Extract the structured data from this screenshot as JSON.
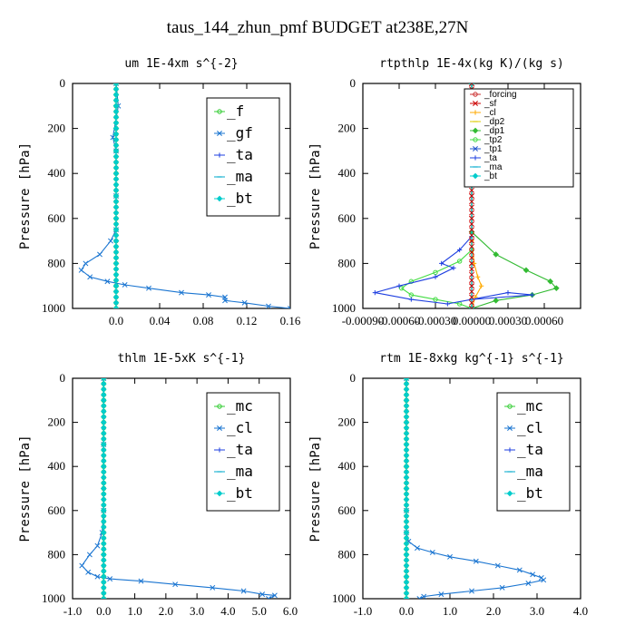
{
  "title": "taus_144_zhun_pmf  BUDGET at238E,27N",
  "chart_data": [
    {
      "type": "line",
      "title": "um   1E-4xm s^{-2}",
      "ylabel": "Pressure [hPa]",
      "xlim": [
        -0.04,
        0.16
      ],
      "xticks": [
        {
          "v": 0.0,
          "label": "0.0"
        },
        {
          "v": 0.04,
          "label": "0.04"
        },
        {
          "v": 0.08,
          "label": "0.08"
        },
        {
          "v": 0.12,
          "label": "0.12"
        },
        {
          "v": 0.16,
          "label": "0.16"
        }
      ],
      "ylim": [
        1000,
        0
      ],
      "yticks": [
        0,
        200,
        400,
        600,
        800,
        1000
      ],
      "legend": {
        "style": "big",
        "position": "top-right"
      },
      "series": [
        {
          "name": "_f",
          "color": "#33cc33",
          "marker": "o",
          "points": [
            [
              0,
              0
            ],
            [
              0,
              100
            ],
            [
              0,
              200
            ],
            [
              0,
              300
            ],
            [
              0,
              400
            ],
            [
              0,
              500
            ],
            [
              0,
              600
            ],
            [
              0,
              700
            ],
            [
              0,
              800
            ],
            [
              0,
              900
            ],
            [
              0,
              1000
            ]
          ]
        },
        {
          "name": "_gf",
          "color": "#1a75d1",
          "marker": "x",
          "points": [
            [
              0,
              0
            ],
            [
              0.002,
              100
            ],
            [
              -0.003,
              240
            ],
            [
              0,
              300
            ],
            [
              0,
              500
            ],
            [
              0,
              650
            ],
            [
              -0.005,
              700
            ],
            [
              -0.015,
              760
            ],
            [
              -0.028,
              800
            ],
            [
              -0.032,
              830
            ],
            [
              -0.024,
              860
            ],
            [
              -0.008,
              880
            ],
            [
              0.008,
              895
            ],
            [
              0.03,
              910
            ],
            [
              0.06,
              930
            ],
            [
              0.085,
              940
            ],
            [
              0.1,
              950
            ],
            [
              0.1,
              965
            ],
            [
              0.118,
              975
            ],
            [
              0.14,
              990
            ],
            [
              0.16,
              1000
            ]
          ]
        },
        {
          "name": "_ta",
          "color": "#1e3fe0",
          "marker": "+",
          "points": [
            [
              0,
              0
            ],
            [
              0,
              1000
            ]
          ]
        },
        {
          "name": "_ma",
          "color": "#00aacc",
          "marker": "-",
          "points": [
            [
              0,
              0
            ],
            [
              0,
              1000
            ]
          ]
        },
        {
          "name": "_bt",
          "color": "#00cccc",
          "marker": "d",
          "points": [
            [
              0,
              0
            ],
            [
              0,
              100
            ],
            [
              0,
              200
            ],
            [
              0,
              300
            ],
            [
              0,
              400
            ],
            [
              0,
              500
            ],
            [
              0,
              600
            ],
            [
              0,
              700
            ],
            [
              0,
              800
            ],
            [
              0,
              900
            ],
            [
              0,
              1000
            ]
          ]
        }
      ]
    },
    {
      "type": "line",
      "title": "rtpthlp   1E-4x(kg K)/(kg s)",
      "ylabel": "Pressure [hPa]",
      "xlim": [
        -0.0009,
        0.0009
      ],
      "xticks": [
        {
          "v": -0.0009,
          "label": "-0.00090"
        },
        {
          "v": -0.0006,
          "label": "-0.00060"
        },
        {
          "v": -0.0003,
          "label": "-0.00030"
        },
        {
          "v": 0.0,
          "label": "0.00000"
        },
        {
          "v": 0.0003,
          "label": "0.00030"
        },
        {
          "v": 0.0006,
          "label": "0.00060"
        }
      ],
      "ylim": [
        1000,
        0
      ],
      "yticks": [
        0,
        200,
        400,
        600,
        800,
        1000
      ],
      "legend": {
        "style": "small",
        "position": "top-right"
      },
      "series": [
        {
          "name": "_forcing",
          "color": "#cc3333",
          "marker": "o",
          "points": [
            [
              0,
              0
            ],
            [
              0,
              1000
            ]
          ]
        },
        {
          "name": "_sf",
          "color": "#cc0000",
          "marker": "x",
          "points": [
            [
              0,
              0
            ],
            [
              0,
              100
            ],
            [
              0,
              200
            ],
            [
              0,
              300
            ],
            [
              0,
              400
            ],
            [
              0,
              500
            ],
            [
              0,
              600
            ],
            [
              0,
              700
            ],
            [
              0,
              800
            ],
            [
              0,
              900
            ],
            [
              0,
              1000
            ]
          ]
        },
        {
          "name": "_cl",
          "color": "#ffaa00",
          "marker": "+",
          "points": [
            [
              0,
              0
            ],
            [
              0,
              700
            ],
            [
              2e-05,
              800
            ],
            [
              5e-05,
              860
            ],
            [
              8e-05,
              900
            ],
            [
              3e-05,
              950
            ],
            [
              0,
              1000
            ]
          ]
        },
        {
          "name": "_dp2",
          "color": "#ddcc00",
          "marker": "-",
          "points": [
            [
              0,
              0
            ],
            [
              0,
              1000
            ]
          ]
        },
        {
          "name": "_dp1",
          "color": "#33bb33",
          "marker": "d",
          "points": [
            [
              0,
              0
            ],
            [
              0,
              660
            ],
            [
              0.0002,
              760
            ],
            [
              0.00045,
              830
            ],
            [
              0.00065,
              880
            ],
            [
              0.0007,
              910
            ],
            [
              0.0005,
              940
            ],
            [
              0.0002,
              965
            ],
            [
              0,
              1000
            ]
          ]
        },
        {
          "name": "_tp2",
          "color": "#44dd44",
          "marker": "o",
          "points": [
            [
              0,
              0
            ],
            [
              0,
              740
            ],
            [
              -0.0001,
              790
            ],
            [
              -0.0003,
              840
            ],
            [
              -0.0005,
              880
            ],
            [
              -0.00058,
              910
            ],
            [
              -0.0005,
              940
            ],
            [
              -0.0003,
              960
            ],
            [
              -0.0001,
              980
            ],
            [
              0,
              1000
            ]
          ]
        },
        {
          "name": "_tp1",
          "color": "#2255cc",
          "marker": "x",
          "points": [
            [
              0,
              0
            ],
            [
              0,
              1000
            ]
          ]
        },
        {
          "name": "_ta",
          "color": "#1e3fe0",
          "marker": "+",
          "points": [
            [
              0,
              0
            ],
            [
              0,
              680
            ],
            [
              -0.0001,
              740
            ],
            [
              -0.00025,
              800
            ],
            [
              -0.00015,
              820
            ],
            [
              -0.0003,
              860
            ],
            [
              -0.0006,
              900
            ],
            [
              -0.0008,
              930
            ],
            [
              -0.0005,
              960
            ],
            [
              -0.0002,
              980
            ],
            [
              0.0003,
              930
            ],
            [
              0.0005,
              940
            ],
            [
              0,
              960
            ],
            [
              0,
              1000
            ]
          ]
        },
        {
          "name": "_ma",
          "color": "#00aacc",
          "marker": "-",
          "points": [
            [
              0,
              0
            ],
            [
              0,
              1000
            ]
          ]
        },
        {
          "name": "_bt",
          "color": "#00cccc",
          "marker": "d",
          "points": [
            [
              0,
              0
            ],
            [
              0,
              1000
            ]
          ]
        }
      ]
    },
    {
      "type": "line",
      "title": "thlm   1E-5xK s^{-1}",
      "ylabel": "Pressure [hPa]",
      "xlim": [
        -1.0,
        6.0
      ],
      "xticks": [
        {
          "v": -1.0,
          "label": "-1.0"
        },
        {
          "v": 0.0,
          "label": "0.0"
        },
        {
          "v": 1.0,
          "label": "1.0"
        },
        {
          "v": 2.0,
          "label": "2.0"
        },
        {
          "v": 3.0,
          "label": "3.0"
        },
        {
          "v": 4.0,
          "label": "4.0"
        },
        {
          "v": 5.0,
          "label": "5.0"
        },
        {
          "v": 6.0,
          "label": "6.0"
        }
      ],
      "ylim": [
        1000,
        0
      ],
      "yticks": [
        0,
        200,
        400,
        600,
        800,
        1000
      ],
      "legend": {
        "style": "big",
        "position": "top-right"
      },
      "series": [
        {
          "name": "_mc",
          "color": "#33cc33",
          "marker": "o",
          "points": [
            [
              0,
              0
            ],
            [
              0,
              100
            ],
            [
              0,
              200
            ],
            [
              0,
              300
            ],
            [
              0,
              400
            ],
            [
              0,
              500
            ],
            [
              0,
              600
            ],
            [
              0,
              700
            ],
            [
              0,
              800
            ],
            [
              0,
              900
            ],
            [
              0,
              1000
            ]
          ]
        },
        {
          "name": "_cl",
          "color": "#1a75d1",
          "marker": "x",
          "points": [
            [
              0,
              0
            ],
            [
              0,
              300
            ],
            [
              0,
              600
            ],
            [
              -0.05,
              700
            ],
            [
              -0.2,
              760
            ],
            [
              -0.45,
              800
            ],
            [
              -0.7,
              850
            ],
            [
              -0.5,
              880
            ],
            [
              -0.2,
              900
            ],
            [
              0.2,
              910
            ],
            [
              1.2,
              920
            ],
            [
              2.3,
              935
            ],
            [
              3.5,
              950
            ],
            [
              4.5,
              965
            ],
            [
              5.1,
              980
            ],
            [
              5.5,
              985
            ],
            [
              5.3,
              1000
            ]
          ]
        },
        {
          "name": "_ta",
          "color": "#1e3fe0",
          "marker": "+",
          "points": [
            [
              0,
              0
            ],
            [
              0,
              1000
            ]
          ]
        },
        {
          "name": "_ma",
          "color": "#00aacc",
          "marker": "-",
          "points": [
            [
              0,
              0
            ],
            [
              0,
              1000
            ]
          ]
        },
        {
          "name": "_bt",
          "color": "#00cccc",
          "marker": "d",
          "points": [
            [
              0,
              0
            ],
            [
              0,
              100
            ],
            [
              0,
              200
            ],
            [
              0,
              300
            ],
            [
              0,
              400
            ],
            [
              0,
              500
            ],
            [
              0,
              600
            ],
            [
              0,
              700
            ],
            [
              0,
              800
            ],
            [
              0,
              900
            ],
            [
              0,
              1000
            ]
          ]
        }
      ]
    },
    {
      "type": "line",
      "title": "rtm   1E-8xkg kg^{-1} s^{-1}",
      "ylabel": "Pressure [hPa]",
      "xlim": [
        -1.0,
        4.0
      ],
      "xticks": [
        {
          "v": -1.0,
          "label": "-1.0"
        },
        {
          "v": 0.0,
          "label": "0.0"
        },
        {
          "v": 1.0,
          "label": "1.0"
        },
        {
          "v": 2.0,
          "label": "2.0"
        },
        {
          "v": 3.0,
          "label": "3.0"
        },
        {
          "v": 4.0,
          "label": "4.0"
        }
      ],
      "ylim": [
        1000,
        0
      ],
      "yticks": [
        0,
        200,
        400,
        600,
        800,
        1000
      ],
      "legend": {
        "style": "big",
        "position": "top-right"
      },
      "series": [
        {
          "name": "_mc",
          "color": "#33cc33",
          "marker": "o",
          "points": [
            [
              0,
              0
            ],
            [
              0,
              100
            ],
            [
              0,
              200
            ],
            [
              0,
              300
            ],
            [
              0,
              400
            ],
            [
              0,
              500
            ],
            [
              0,
              600
            ],
            [
              0,
              700
            ],
            [
              0,
              800
            ],
            [
              0,
              900
            ],
            [
              0,
              1000
            ]
          ]
        },
        {
          "name": "_cl",
          "color": "#1a75d1",
          "marker": "x",
          "points": [
            [
              0,
              0
            ],
            [
              0,
              600
            ],
            [
              0,
              700
            ],
            [
              0.05,
              740
            ],
            [
              0.25,
              770
            ],
            [
              0.6,
              790
            ],
            [
              1.0,
              810
            ],
            [
              1.6,
              830
            ],
            [
              2.1,
              850
            ],
            [
              2.6,
              870
            ],
            [
              2.9,
              890
            ],
            [
              3.1,
              905
            ],
            [
              3.15,
              915
            ],
            [
              2.8,
              930
            ],
            [
              2.2,
              950
            ],
            [
              1.5,
              965
            ],
            [
              0.8,
              980
            ],
            [
              0.4,
              990
            ],
            [
              0.3,
              1000
            ]
          ]
        },
        {
          "name": "_ta",
          "color": "#1e3fe0",
          "marker": "+",
          "points": [
            [
              0,
              0
            ],
            [
              0,
              1000
            ]
          ]
        },
        {
          "name": "_ma",
          "color": "#00aacc",
          "marker": "-",
          "points": [
            [
              0,
              0
            ],
            [
              0,
              1000
            ]
          ]
        },
        {
          "name": "_bt",
          "color": "#00cccc",
          "marker": "d",
          "points": [
            [
              0,
              0
            ],
            [
              0,
              100
            ],
            [
              0,
              200
            ],
            [
              0,
              300
            ],
            [
              0,
              400
            ],
            [
              0,
              500
            ],
            [
              0,
              600
            ],
            [
              0,
              700
            ],
            [
              0,
              800
            ],
            [
              0,
              900
            ],
            [
              0,
              1000
            ]
          ]
        }
      ]
    }
  ]
}
